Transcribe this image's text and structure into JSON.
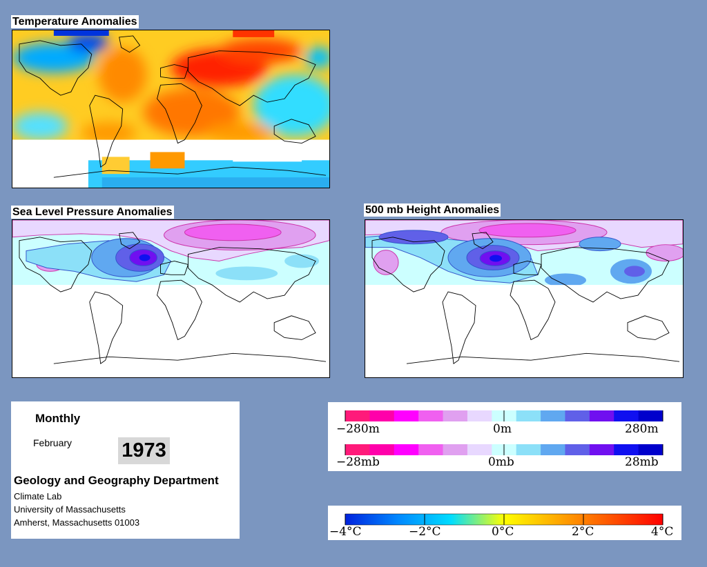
{
  "panels": {
    "temperature": {
      "title": "Temperature Anomalies"
    },
    "sea_level_pressure": {
      "title": "Sea Level Pressure Anomalies"
    },
    "height_500mb": {
      "title": "500 mb Height Anomalies"
    }
  },
  "info": {
    "frequency": "Monthly",
    "month": "February",
    "year": "1973",
    "department": "Geology and Geography Department",
    "lab": "Climate Lab",
    "university": "University of Massachusetts",
    "address": "Amherst, Massachusetts 01003"
  },
  "legends": {
    "height": {
      "labels": {
        "min": "−280m",
        "mid": "0m",
        "max": "280m"
      },
      "colors": [
        "#ff1a7a",
        "#ff00aa",
        "#ff00ff",
        "#f060f0",
        "#e0a0f0",
        "#e8d8ff",
        "#ccffff",
        "#8ce0f8",
        "#60a8f0",
        "#6060e8",
        "#7010f0",
        "#1010f0",
        "#0000cc"
      ]
    },
    "pressure": {
      "labels": {
        "min": "−28mb",
        "mid": "0mb",
        "max": "28mb"
      },
      "colors": [
        "#ff1a7a",
        "#ff00aa",
        "#ff00ff",
        "#f060f0",
        "#e0a0f0",
        "#e8d8ff",
        "#ccffff",
        "#8ce0f8",
        "#60a8f0",
        "#6060e8",
        "#7010f0",
        "#1010f0",
        "#0000cc"
      ]
    },
    "temperature": {
      "labels": [
        "−4°C",
        "−2°C",
        "0°C",
        "2°C",
        "4°C"
      ],
      "gradient": [
        "#0022dd",
        "#0088ff",
        "#00ddff",
        "#ffff00",
        "#ffaa00",
        "#ff5500",
        "#ff0000"
      ]
    }
  }
}
